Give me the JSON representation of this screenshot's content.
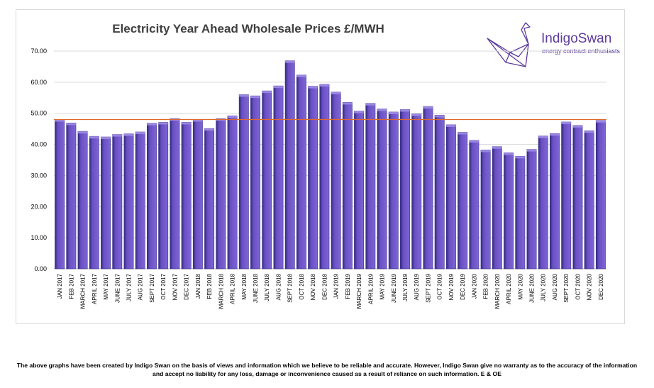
{
  "chart_data": {
    "type": "bar",
    "title": "Electricity Year Ahead Wholesale Prices £/MWH",
    "xlabel": "",
    "ylabel": "",
    "ylim": [
      0,
      70
    ],
    "yticks": [
      "0.00",
      "10.00",
      "20.00",
      "30.00",
      "40.00",
      "50.00",
      "60.00",
      "70.00"
    ],
    "grid": true,
    "reference_line": 48.0,
    "categories": [
      "JAN 2017",
      "FEB 2017",
      "MARCH 2017",
      "APRIL 2017",
      "MAY 2017",
      "JUNE 2017",
      "JULY 2017",
      "AUG 2017",
      "SEPT 2017",
      "OCT 2017",
      "NOV 2017",
      "DEC 2017",
      "JAN 2018",
      "FEB 2018",
      "MARCH 2018",
      "APRIL 2018",
      "MAY 2018",
      "JUNE 2018",
      "JULY 2018",
      "AUG 2018",
      "SEPT 2018",
      "OCT 2018",
      "NOV 2018",
      "DEC 2018",
      "JAN 2019",
      "FEB 2019",
      "MARCH 2019",
      "APRIL 2019",
      "MAY 2019",
      "JUNE 2019",
      "JULY 2019",
      "AUG 2019",
      "SEPT 2019",
      "OCT 2019",
      "NOV 2019",
      "DEC 2019",
      "JAN 2020",
      "FEB 2020",
      "MARCH 2020",
      "APRIL 2020",
      "MAY 2020",
      "JUNE 2020",
      "JULY 2020",
      "AUG 2020",
      "SEPT 2020",
      "OCT 2020",
      "NOV 2020",
      "DEC 2020"
    ],
    "values": [
      48.0,
      46.9,
      44.2,
      42.6,
      42.4,
      43.2,
      43.4,
      44.0,
      46.8,
      47.1,
      48.3,
      47.1,
      48.0,
      45.1,
      48.3,
      49.2,
      56.0,
      55.6,
      57.2,
      58.8,
      66.9,
      62.3,
      58.7,
      59.3,
      56.8,
      53.5,
      50.7,
      53.2,
      51.4,
      50.4,
      51.2,
      49.8,
      52.2,
      49.4,
      46.3,
      43.9,
      41.3,
      38.2,
      39.3,
      37.3,
      36.2,
      38.4,
      42.7,
      43.5,
      47.2,
      46.1,
      44.4,
      47.7
    ],
    "colors": {
      "bar": "#6a4fc4",
      "bar_top": "#9a86e2",
      "bar_side": "#2e2a7a",
      "reference_line": "#e0692a",
      "grid": "#d9d9d9"
    }
  },
  "brand": {
    "name": "IndigoSwan",
    "tagline": "energy contract enthusiasts",
    "logo_icon": "origami-swan-icon",
    "color": "#5b3a9b"
  },
  "disclaimer": {
    "line1": "The above graphs have been created by Indigo Swan on the basis of views and information which we believe to be reliable and accurate. However, Indigo Swan give no warranty as to the accuracy of the information",
    "line2": "and accept no liability for any loss, damage or inconvenience caused as a result of reliance on such information. E & OE"
  }
}
